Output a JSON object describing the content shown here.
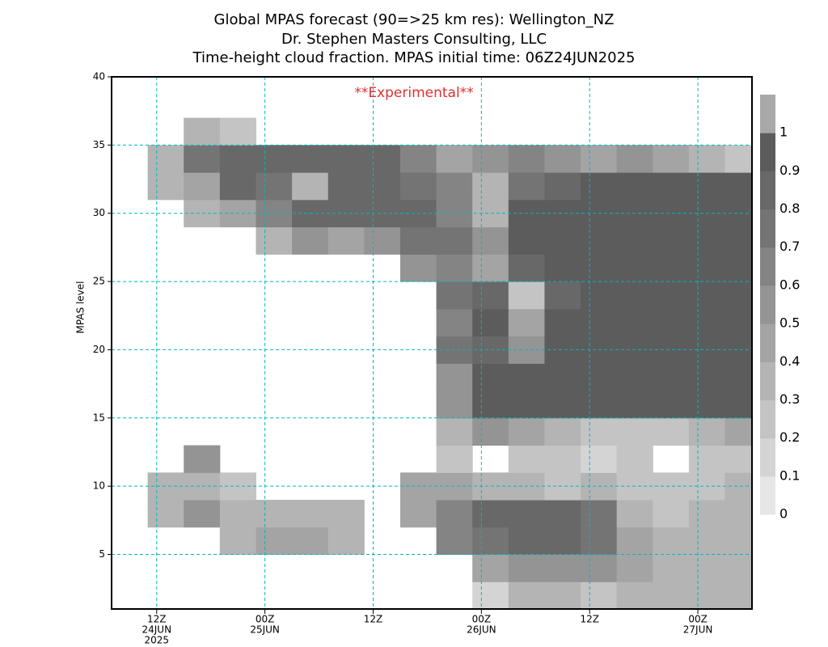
{
  "chart_data": {
    "type": "contour",
    "title": [
      "Global MPAS forecast (90=>25 km res): Wellington_NZ",
      "Dr. Stephen Masters Consulting, LLC",
      "Time-height cloud fraction.   MPAS initial time: 06Z24JUN2025"
    ],
    "annotation": "**Experimental**",
    "annotation_color": "#e03030",
    "y_label": "MPAS level",
    "xlim": [
      7,
      78
    ],
    "xticks": [
      {
        "value": 12,
        "label": [
          "12Z",
          "24JUN",
          "2025"
        ]
      },
      {
        "value": 24,
        "label": [
          "00Z",
          "25JUN"
        ]
      },
      {
        "value": 36,
        "label": [
          "12Z"
        ]
      },
      {
        "value": 48,
        "label": [
          "00Z",
          "26JUN"
        ]
      },
      {
        "value": 60,
        "label": [
          "12Z"
        ]
      },
      {
        "value": 72,
        "label": [
          "00Z",
          "27JUN"
        ]
      }
    ],
    "ylim": [
      1,
      40
    ],
    "yticks": [
      5,
      10,
      15,
      20,
      25,
      30,
      35,
      40
    ],
    "grid": true,
    "grid_color": "#00b8c0",
    "x": [
      9,
      13,
      17,
      21,
      25,
      29,
      33,
      37,
      41,
      45,
      49,
      53,
      57,
      61,
      65,
      69,
      73,
      77
    ],
    "y": [
      2,
      4,
      6,
      8,
      10,
      12,
      14,
      16,
      18,
      20,
      22,
      24,
      26,
      28,
      30,
      32,
      34,
      36,
      38,
      40
    ],
    "z": [
      [
        0,
        0,
        0,
        0,
        0,
        0,
        0,
        0,
        0,
        0,
        0.1,
        0.3,
        0.3,
        0.2,
        0.3,
        0.3,
        0.3,
        0.3
      ],
      [
        0,
        0,
        0,
        0,
        0,
        0,
        0,
        0,
        0,
        0,
        0.4,
        0.5,
        0.5,
        0.5,
        0.4,
        0.3,
        0.3,
        0.3
      ],
      [
        0,
        0,
        0,
        0.3,
        0.4,
        0.4,
        0.3,
        0,
        0,
        0.6,
        0.7,
        0.8,
        0.8,
        0.7,
        0.4,
        0.3,
        0.3,
        0.3
      ],
      [
        0,
        0.3,
        0.5,
        0.3,
        0.3,
        0.3,
        0.3,
        0,
        0.4,
        0.6,
        0.8,
        0.8,
        0.8,
        0.7,
        0.3,
        0.2,
        0.3,
        0.3
      ],
      [
        0,
        0.3,
        0.3,
        0.2,
        0,
        0,
        0,
        0,
        0.4,
        0.4,
        0.3,
        0.3,
        0.2,
        0.3,
        0.2,
        0.2,
        0.2,
        0.3
      ],
      [
        0,
        0,
        0.5,
        0,
        0,
        0,
        0,
        0,
        0,
        0.2,
        0,
        0.2,
        0.2,
        0.1,
        0.2,
        0,
        0.2,
        0.2
      ],
      [
        0,
        0,
        0,
        0,
        0,
        0,
        0,
        0,
        0,
        0.3,
        0.5,
        0.4,
        0.3,
        0.2,
        0.2,
        0.2,
        0.3,
        0.4
      ],
      [
        0,
        0,
        0,
        0,
        0,
        0,
        0,
        0,
        0,
        0.5,
        0.9,
        0.9,
        0.9,
        0.9,
        0.9,
        0.9,
        0.9,
        0.9
      ],
      [
        0,
        0,
        0,
        0,
        0,
        0,
        0,
        0,
        0,
        0.5,
        0.9,
        0.9,
        0.9,
        0.9,
        0.9,
        0.9,
        0.9,
        0.9
      ],
      [
        0,
        0,
        0,
        0,
        0,
        0,
        0,
        0,
        0,
        0.7,
        0.8,
        0.5,
        0.9,
        0.9,
        0.9,
        0.9,
        0.9,
        0.9
      ],
      [
        0,
        0,
        0,
        0,
        0,
        0,
        0,
        0,
        0,
        0.6,
        0.9,
        0.4,
        0.9,
        0.9,
        0.9,
        0.9,
        0.9,
        0.9
      ],
      [
        0,
        0,
        0,
        0,
        0,
        0,
        0,
        0,
        0,
        0.7,
        0.8,
        0.2,
        0.8,
        0.9,
        0.9,
        0.9,
        0.9,
        0.9
      ],
      [
        0,
        0,
        0,
        0,
        0,
        0,
        0,
        0,
        0.5,
        0.6,
        0.4,
        0.8,
        0.9,
        0.9,
        0.9,
        0.9,
        0.9,
        0.9
      ],
      [
        0,
        0,
        0,
        0,
        0.3,
        0.5,
        0.4,
        0.5,
        0.7,
        0.7,
        0.5,
        0.9,
        0.9,
        0.9,
        0.9,
        0.9,
        0.9,
        0.9
      ],
      [
        0,
        0,
        0.3,
        0.4,
        0.6,
        0.8,
        0.8,
        0.8,
        0.8,
        0.6,
        0.3,
        0.9,
        0.9,
        0.9,
        0.9,
        0.9,
        0.9,
        0.9
      ],
      [
        0,
        0.3,
        0.4,
        0.8,
        0.7,
        0.3,
        0.8,
        0.8,
        0.7,
        0.6,
        0.3,
        0.7,
        0.8,
        0.9,
        0.9,
        0.9,
        0.9,
        0.9
      ],
      [
        0,
        0.3,
        0.7,
        0.8,
        0.8,
        0.8,
        0.8,
        0.8,
        0.6,
        0.4,
        0.5,
        0.6,
        0.5,
        0.4,
        0.5,
        0.4,
        0.3,
        0.2
      ],
      [
        0,
        0,
        0.3,
        0.2,
        0,
        0,
        0,
        0,
        0,
        0,
        0,
        0,
        0,
        0,
        0,
        0,
        0,
        0
      ],
      [
        0,
        0,
        0,
        0,
        0,
        0,
        0,
        0,
        0,
        0,
        0,
        0,
        0,
        0,
        0,
        0,
        0,
        0
      ],
      [
        0,
        0,
        0,
        0,
        0,
        0,
        0,
        0,
        0,
        0,
        0,
        0,
        0,
        0,
        0,
        0,
        0,
        0
      ]
    ],
    "levels": [
      0,
      0.1,
      0.2,
      0.3,
      0.4,
      0.5,
      0.6,
      0.7,
      0.8,
      0.9,
      1
    ],
    "colors": [
      "#e6e6e6",
      "#d4d4d4",
      "#c4c4c4",
      "#b4b4b4",
      "#a4a4a4",
      "#949494",
      "#848484",
      "#747474",
      "#686868",
      "#5c5c5c",
      "#a8a8a8"
    ]
  }
}
